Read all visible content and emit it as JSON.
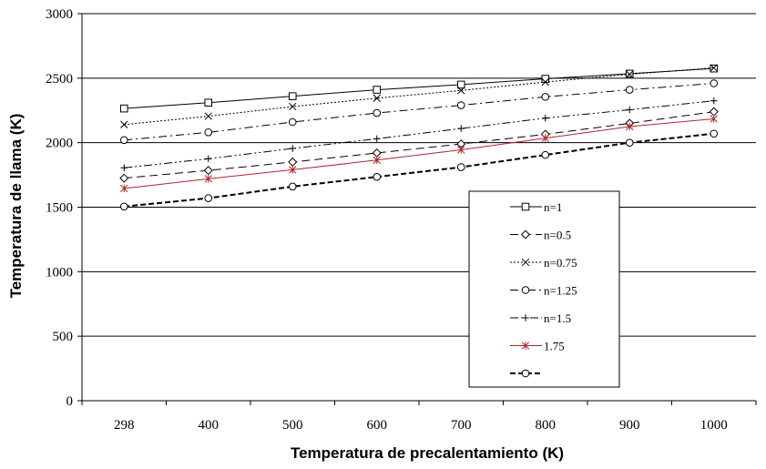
{
  "chart_data": {
    "type": "line",
    "xlabel": "Temperatura de precalentamiento (K)",
    "ylabel": "Temperatura de llama (K)",
    "categories": [
      "298",
      "400",
      "500",
      "600",
      "700",
      "800",
      "900",
      "1000"
    ],
    "ylim": [
      0,
      3000
    ],
    "yticks": [
      0,
      500,
      1000,
      1500,
      2000,
      2500,
      3000
    ],
    "grid": "horizontal",
    "legend_position": "inside-right",
    "series": [
      {
        "name": "n=1",
        "marker": "square",
        "dash": "",
        "color": "#000000",
        "values": [
          2265,
          2310,
          2360,
          2410,
          2450,
          2495,
          2535,
          2575
        ]
      },
      {
        "name": "n=0.5",
        "marker": "diamond",
        "dash": "9 5",
        "color": "#000000",
        "values": [
          1725,
          1785,
          1850,
          1920,
          1990,
          2065,
          2150,
          2240
        ]
      },
      {
        "name": "n=0.75",
        "marker": "x",
        "dash": "2 2",
        "color": "#000000",
        "values": [
          2140,
          2205,
          2280,
          2345,
          2405,
          2470,
          2530,
          2580
        ]
      },
      {
        "name": "n=1.25",
        "marker": "circle",
        "dash": "9 4 2 4",
        "color": "#000000",
        "values": [
          2020,
          2080,
          2160,
          2230,
          2290,
          2355,
          2410,
          2460
        ]
      },
      {
        "name": "n=1.5",
        "marker": "plus",
        "dash": "9 3 2 3 2 3",
        "color": "#000000",
        "values": [
          1805,
          1875,
          1955,
          2030,
          2110,
          2190,
          2255,
          2325
        ]
      },
      {
        "name": "1.75",
        "marker": "asterisk",
        "dash": "",
        "color": "#b0242b",
        "values": [
          1645,
          1720,
          1790,
          1865,
          1945,
          2035,
          2125,
          2185
        ]
      },
      {
        "name": "",
        "marker": "circle",
        "dash": "6 3",
        "color": "#000000",
        "bold": true,
        "values": [
          1505,
          1570,
          1660,
          1735,
          1810,
          1905,
          2000,
          2070
        ]
      }
    ]
  }
}
